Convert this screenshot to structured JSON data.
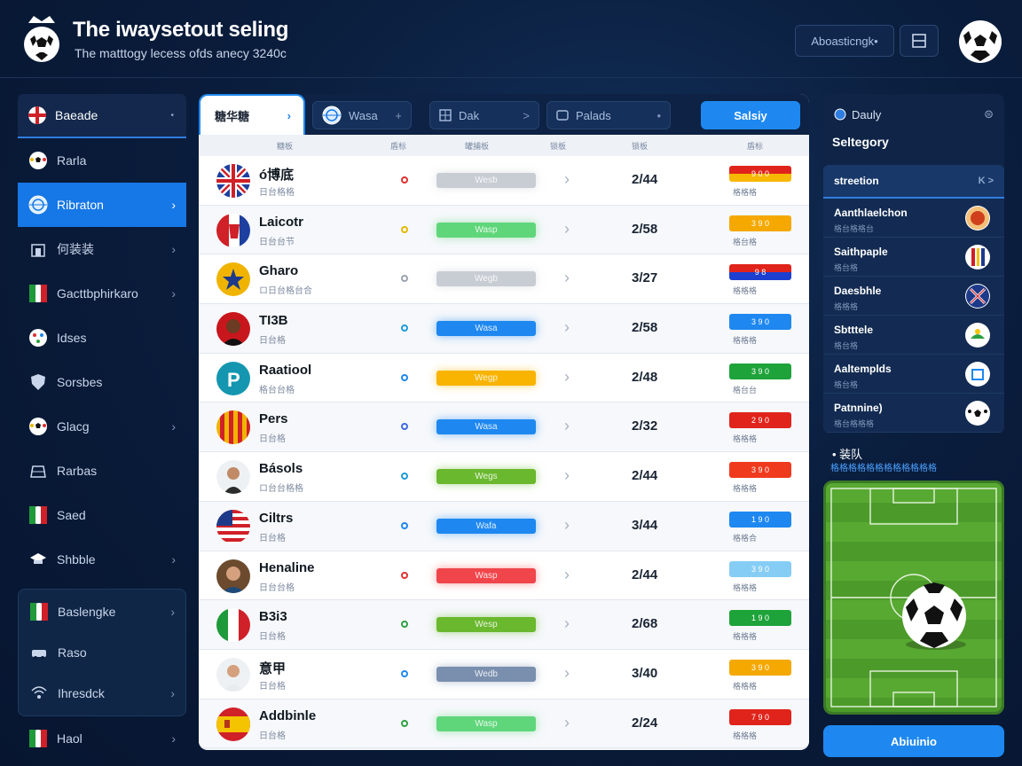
{
  "header": {
    "title": "The iwaysetout seling",
    "subtitle": "The matttogy lecess ofds anecy 3240c",
    "action_label": "Aboasticngk•",
    "colors": {
      "accent": "#1e88f0",
      "bg": "#0a1d3c"
    }
  },
  "sidebar": {
    "top_label": "Baeade",
    "items": [
      {
        "label": "Rarla",
        "icon": "ball-icon",
        "chevron": false,
        "active": false
      },
      {
        "label": "Ribraton",
        "icon": "globe-icon",
        "chevron": true,
        "active": true
      },
      {
        "label": "何装装",
        "icon": "building-icon",
        "chevron": true,
        "active": false
      },
      {
        "label": "Gacttbphirkaro",
        "icon": "flag-icon",
        "chevron": true,
        "active": false
      },
      {
        "label": "Idses",
        "icon": "dots-icon",
        "chevron": false,
        "active": false
      },
      {
        "label": "Sorsbes",
        "icon": "shield-icon",
        "chevron": false,
        "active": false
      },
      {
        "label": "Glacg",
        "icon": "ball-icon",
        "chevron": true,
        "active": false
      },
      {
        "label": "Rarbas",
        "icon": "stadium-icon",
        "chevron": false,
        "active": false
      },
      {
        "label": "Saed",
        "icon": "flag-icon",
        "chevron": false,
        "active": false
      },
      {
        "label": "Shbble",
        "icon": "cap-icon",
        "chevron": true,
        "active": false
      }
    ],
    "group": [
      {
        "label": "Baslengke",
        "icon": "flag-icon",
        "chevron": true
      },
      {
        "label": "Raso",
        "icon": "car-icon",
        "chevron": false
      },
      {
        "label": "Ihresdck",
        "icon": "signal-icon",
        "chevron": true
      }
    ],
    "bottom": {
      "label": "Haol",
      "icon": "flag-icon",
      "chevron": true
    }
  },
  "toolbar": {
    "tab_main": "糖华糖",
    "pills": [
      {
        "label": "Wasa",
        "icon": "globe-icon",
        "suffix": "+"
      },
      {
        "label": "Dak",
        "icon": "grid-icon",
        "suffix": ">"
      },
      {
        "label": "Palads",
        "icon": "box-icon",
        "suffix": "•"
      }
    ],
    "button": "Salsiy"
  },
  "columns": [
    "糖板",
    "盾标",
    "罐捕板",
    "锁板",
    "锁板",
    "盾标"
  ],
  "rows": [
    {
      "name": "ó博底",
      "sub": "日台格格",
      "bar_label": "Wesb",
      "score": "2/44",
      "tag": "9 0 0",
      "tag_sub": "格格格",
      "status_color": "#e03030",
      "bar_color": "#c8cdd4",
      "tag_colors": [
        "#e0241b",
        "#f6b800"
      ],
      "avatar": "uk"
    },
    {
      "name": "Laicotr",
      "sub": "日台台节",
      "bar_label": "Wasp",
      "score": "2/58",
      "tag": "3 9 0",
      "tag_sub": "格台格",
      "status_color": "#e6b800",
      "bar_color": "#5fd67a",
      "tag_colors": [
        "#f5a800"
      ],
      "avatar": "red"
    },
    {
      "name": "Gharo",
      "sub": "ロ日台格台合",
      "bar_label": "Wegb",
      "score": "3/27",
      "tag": "9 8",
      "tag_sub": "格格格",
      "status_color": "#9aa3b0",
      "bar_color": "#c8cdd4",
      "tag_colors": [
        "#e0241b",
        "#1d3fd0"
      ],
      "avatar": "star"
    },
    {
      "name": "TI3B",
      "sub": "日台格",
      "bar_label": "Wasa",
      "score": "2/58",
      "tag": "3 9 0",
      "tag_sub": "格格格",
      "status_color": "#1e9bd8",
      "bar_color": "#1e88f0",
      "tag_colors": [
        "#1e88f0"
      ],
      "avatar": "face"
    },
    {
      "name": "Raatiool",
      "sub": "格台台格",
      "bar_label": "Wegp",
      "score": "2/48",
      "tag": "3 9 0",
      "tag_sub": "格台台",
      "status_color": "#1e88f0",
      "bar_color": "#f8b400",
      "tag_colors": [
        "#1ea33a"
      ],
      "avatar": "p"
    },
    {
      "name": "Pers",
      "sub": "日台格",
      "bar_label": "Wasa",
      "score": "2/32",
      "tag": "2 9 0",
      "tag_sub": "格格格",
      "status_color": "#4169e1",
      "bar_color": "#1e88f0",
      "tag_colors": [
        "#e0241b"
      ],
      "avatar": "stripes"
    },
    {
      "name": "Básols",
      "sub": "ロ台台格格",
      "bar_label": "Wegs",
      "score": "2/44",
      "tag": "3 9 0",
      "tag_sub": "格格格",
      "status_color": "#1e9bd8",
      "bar_color": "#6ab82e",
      "tag_colors": [
        "#f03a1e"
      ],
      "avatar": "face2"
    },
    {
      "name": "Ciltrs",
      "sub": "日台格",
      "bar_label": "Wafa",
      "score": "3/44",
      "tag": "1 9 0",
      "tag_sub": "格格合",
      "status_color": "#1e88f0",
      "bar_color": "#1e88f0",
      "tag_colors": [
        "#1e88f0"
      ],
      "avatar": "us"
    },
    {
      "name": "Henaline",
      "sub": "日台台格",
      "bar_label": "Wasp",
      "score": "2/44",
      "tag": "3 9 0",
      "tag_sub": "格格格",
      "status_color": "#e03030",
      "bar_color": "#f0454b",
      "tag_colors": [
        "#86cdf5"
      ],
      "avatar": "face3"
    },
    {
      "name": "B3i3",
      "sub": "日台格",
      "bar_label": "Wesp",
      "score": "2/68",
      "tag": "1 9 0",
      "tag_sub": "格格格",
      "status_color": "#2ea043",
      "bar_color": "#6ab82e",
      "tag_colors": [
        "#1ea33a"
      ],
      "avatar": "it"
    },
    {
      "name": "意甲",
      "sub": "日台格",
      "bar_label": "Wedb",
      "score": "3/40",
      "tag": "3 9 0",
      "tag_sub": "格格格",
      "status_color": "#1e88f0",
      "bar_color": "#7a8fae",
      "tag_colors": [
        "#f5a800"
      ],
      "avatar": "face4"
    },
    {
      "name": "Addbinle",
      "sub": "日台格",
      "bar_label": "Wasp",
      "score": "2/24",
      "tag": "7 9 0",
      "tag_sub": "格格格",
      "status_color": "#2ea043",
      "bar_color": "#5fd67a",
      "tag_colors": [
        "#e0241b"
      ],
      "avatar": "es"
    }
  ],
  "right_panel": {
    "head": "Dauly",
    "title": "Seltegory",
    "list_head": "streetion",
    "list_ctrl": "K  >",
    "items": [
      {
        "title": "Aanthlaelchon",
        "sub": "格台格格台",
        "badge": "red-ball"
      },
      {
        "title": "Saithpaple",
        "sub": "格台格",
        "badge": "stripes"
      },
      {
        "title": "Daesbhle",
        "sub": "格格格",
        "badge": "blue-flag"
      },
      {
        "title": "Sbtttele",
        "sub": "格台格",
        "badge": "green"
      },
      {
        "title": "Aaltemplds",
        "sub": "格台格",
        "badge": "blue-badge"
      },
      {
        "title": "Patnnine)",
        "sub": "格台格格格",
        "badge": "ball"
      }
    ],
    "section_title": "•  装队",
    "section_sub": "格格格格格格格格格格格格",
    "button": "Abiuinio"
  }
}
